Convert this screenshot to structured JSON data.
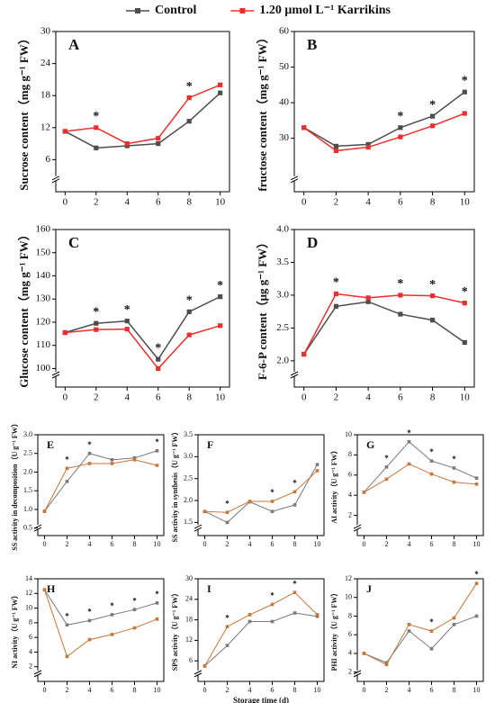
{
  "chart_data": [
    {
      "type": "line",
      "label": "A",
      "ylabel": "Sucrose content（mg g⁻¹ FW）",
      "x": [
        0,
        2,
        4,
        6,
        8,
        10
      ],
      "xlim": [
        -0.6,
        10.6
      ],
      "xticks": [
        0,
        2,
        4,
        6,
        8,
        10
      ],
      "ylim": [
        0,
        30
      ],
      "yticks": [
        6,
        12,
        18,
        24,
        30
      ],
      "series": [
        {
          "name": "Control",
          "color": "#4d4d4d",
          "values": [
            11.3,
            8.2,
            8.6,
            9.0,
            13.2,
            18.5
          ]
        },
        {
          "name": "1.20 μmol L⁻¹ Karrikins",
          "color": "#e8302c",
          "values": [
            11.3,
            12.0,
            9.0,
            10.0,
            17.6,
            20.0
          ]
        }
      ],
      "annotations": [
        {
          "x": 2,
          "text": "*"
        },
        {
          "x": 8,
          "text": "*"
        }
      ]
    },
    {
      "type": "line",
      "label": "B",
      "ylabel": "fructose content（mg g⁻¹ FW）",
      "x": [
        0,
        2,
        4,
        6,
        8,
        10
      ],
      "xlim": [
        -0.6,
        10.6
      ],
      "xticks": [
        0,
        2,
        4,
        6,
        8,
        10
      ],
      "ylim": [
        15,
        60
      ],
      "yticks": [
        30,
        40,
        50,
        60
      ],
      "series": [
        {
          "name": "Control",
          "color": "#4d4d4d",
          "values": [
            33,
            27.8,
            28.3,
            33,
            36.2,
            43
          ]
        },
        {
          "name": "1.20 μmol L⁻¹ Karrikins",
          "color": "#e8302c",
          "values": [
            33,
            26.5,
            27.5,
            30.4,
            33.5,
            37
          ]
        }
      ],
      "annotations": [
        {
          "x": 6,
          "text": "*"
        },
        {
          "x": 8,
          "text": "*"
        },
        {
          "x": 10,
          "text": "*"
        }
      ]
    },
    {
      "type": "line",
      "label": "C",
      "ylabel": "Glucose content（mg g⁻¹ FW）",
      "x": [
        0,
        2,
        4,
        6,
        8,
        10
      ],
      "xlim": [
        -0.6,
        10.6
      ],
      "xticks": [
        0,
        2,
        4,
        6,
        8,
        10
      ],
      "ylim": [
        92,
        160
      ],
      "yticks": [
        100,
        110,
        120,
        130,
        140,
        150,
        160
      ],
      "series": [
        {
          "name": "Control",
          "color": "#4d4d4d",
          "values": [
            115.5,
            119.5,
            120.5,
            104,
            124.5,
            131
          ]
        },
        {
          "name": "1.20 μmol L⁻¹ Karrikins",
          "color": "#e8302c",
          "values": [
            115.5,
            116.8,
            117,
            100,
            114.5,
            118.5
          ]
        }
      ],
      "annotations": [
        {
          "x": 2,
          "text": "*"
        },
        {
          "x": 4,
          "text": "*"
        },
        {
          "x": 6,
          "text": "*"
        },
        {
          "x": 8,
          "text": "*"
        },
        {
          "x": 10,
          "text": "*"
        }
      ]
    },
    {
      "type": "line",
      "label": "D",
      "ylabel": "F-6-P content（μg g⁻¹ FW）",
      "x": [
        0,
        2,
        4,
        6,
        8,
        10
      ],
      "xlim": [
        -0.6,
        10.6
      ],
      "xticks": [
        0,
        2,
        4,
        6,
        8,
        10
      ],
      "ylim": [
        1.6,
        4.0
      ],
      "yticks": [
        {
          "value": 2,
          "label": "2.0"
        },
        2.5,
        {
          "value": 3,
          "label": "3.0"
        },
        3.5,
        {
          "value": 4,
          "label": "4.0"
        }
      ],
      "series": [
        {
          "name": "Control",
          "color": "#4d4d4d",
          "values": [
            2.1,
            2.83,
            2.9,
            2.71,
            2.62,
            2.28
          ]
        },
        {
          "name": "1.20 μmol L⁻¹ Karrikins",
          "color": "#e8302c",
          "values": [
            2.1,
            3.02,
            2.96,
            3.0,
            2.99,
            2.88
          ]
        }
      ],
      "annotations": [
        {
          "x": 2,
          "text": "*"
        },
        {
          "x": 6,
          "text": "*"
        },
        {
          "x": 8,
          "text": "*"
        },
        {
          "x": 10,
          "text": "*"
        }
      ]
    },
    {
      "type": "line",
      "label": "E",
      "ylabel": "SS activity in decomposition（U g⁻¹ FW）",
      "x": [
        0,
        2,
        4,
        6,
        8,
        10
      ],
      "xlim": [
        -0.6,
        10.6
      ],
      "xticks": [
        0,
        2,
        4,
        6,
        8,
        10
      ],
      "ylim": [
        0.3,
        3.0
      ],
      "yticks": [
        0.5,
        {
          "value": 1,
          "label": "1.0"
        },
        1.5,
        {
          "value": 2,
          "label": "2.0"
        },
        2.5,
        {
          "value": 3,
          "label": "3.0"
        }
      ],
      "series": [
        {
          "name": "Control",
          "color": "#7a7a7a",
          "values": [
            0.95,
            1.75,
            2.5,
            2.33,
            2.38,
            2.57
          ]
        },
        {
          "name": "1.20 μmol L⁻¹ Karrikins",
          "color": "#c8763a",
          "values": [
            0.95,
            2.1,
            2.23,
            2.23,
            2.33,
            2.18
          ]
        }
      ],
      "annotations": [
        {
          "x": 2,
          "text": "*"
        },
        {
          "x": 4,
          "text": "*"
        },
        {
          "x": 10,
          "text": "*"
        }
      ]
    },
    {
      "type": "line",
      "label": "F",
      "ylabel": "SS activity in synthesis（U g⁻¹ FW）",
      "x": [
        0,
        2,
        4,
        6,
        8,
        10
      ],
      "xlim": [
        -0.6,
        10.6
      ],
      "xticks": [
        0,
        2,
        4,
        6,
        8,
        10
      ],
      "ylim": [
        1.2,
        3.5
      ],
      "yticks": [
        1.5,
        {
          "value": 2,
          "label": "2.0"
        },
        2.5,
        {
          "value": 3,
          "label": "3.0"
        },
        3.5
      ],
      "series": [
        {
          "name": "Control",
          "color": "#7a7a7a",
          "values": [
            1.75,
            1.5,
            1.97,
            1.75,
            1.9,
            2.82
          ]
        },
        {
          "name": "1.20 μmol L⁻¹ Karrikins",
          "color": "#c8763a",
          "values": [
            1.75,
            1.73,
            1.98,
            1.98,
            2.2,
            2.68
          ]
        }
      ],
      "annotations": [
        {
          "x": 2,
          "text": "*"
        },
        {
          "x": 6,
          "text": "*"
        },
        {
          "x": 8,
          "text": "*"
        }
      ]
    },
    {
      "type": "line",
      "label": "G",
      "ylabel": "AI activity（U g⁻¹ FW）",
      "x": [
        0,
        2,
        4,
        6,
        8,
        10
      ],
      "xlim": [
        -0.6,
        10.6
      ],
      "xticks": [
        0,
        2,
        4,
        6,
        8,
        10
      ],
      "ylim": [
        0,
        10
      ],
      "yticks": [
        2,
        4,
        6,
        8,
        10
      ],
      "series": [
        {
          "name": "Control",
          "color": "#7a7a7a",
          "values": [
            4.3,
            6.8,
            9.3,
            7.4,
            6.7,
            5.7
          ]
        },
        {
          "name": "1.20 μmol L⁻¹ Karrikins",
          "color": "#c8763a",
          "values": [
            4.3,
            5.6,
            7.1,
            6.1,
            5.3,
            5.1
          ]
        }
      ],
      "annotations": [
        {
          "x": 2,
          "text": "*"
        },
        {
          "x": 4,
          "text": "*"
        },
        {
          "x": 6,
          "text": "*"
        },
        {
          "x": 8,
          "text": "*"
        }
      ]
    },
    {
      "type": "line",
      "label": "H",
      "ylabel": "NI activity（U g⁻¹ FW）",
      "x": [
        0,
        2,
        4,
        6,
        8,
        10
      ],
      "xlim": [
        -0.6,
        10.6
      ],
      "xticks": [
        0,
        2,
        4,
        6,
        8,
        10
      ],
      "ylim": [
        0,
        14
      ],
      "yticks": [
        2,
        4,
        6,
        8,
        10,
        12,
        14
      ],
      "series": [
        {
          "name": "Control",
          "color": "#7a7a7a",
          "values": [
            12.5,
            7.7,
            8.3,
            9.1,
            9.8,
            10.7
          ]
        },
        {
          "name": "1.20 μmol L⁻¹ Karrikins",
          "color": "#c8763a",
          "values": [
            12.5,
            3.4,
            5.7,
            6.4,
            7.3,
            8.5
          ]
        }
      ],
      "annotations": [
        {
          "x": 2,
          "text": "*"
        },
        {
          "x": 4,
          "text": "*"
        },
        {
          "x": 6,
          "text": "*"
        },
        {
          "x": 8,
          "text": "*"
        },
        {
          "x": 10,
          "text": "*"
        }
      ]
    },
    {
      "type": "line",
      "label": "I",
      "ylabel": "SPS activity（U g⁻¹ FW）",
      "xlabel": "Storage time (d)",
      "x": [
        0,
        2,
        4,
        6,
        8,
        10
      ],
      "xlim": [
        -0.6,
        10.6
      ],
      "xticks": [
        0,
        2,
        4,
        6,
        8,
        10
      ],
      "ylim": [
        0,
        30
      ],
      "yticks": [
        6,
        12,
        18,
        24,
        30
      ],
      "series": [
        {
          "name": "Control",
          "color": "#7a7a7a",
          "values": [
            4.5,
            10.5,
            17.5,
            17.5,
            20,
            19
          ]
        },
        {
          "name": "1.20 μmol L⁻¹ Karrikins",
          "color": "#c8763a",
          "values": [
            4.5,
            16,
            19.5,
            22.5,
            26,
            19.5
          ]
        }
      ],
      "annotations": [
        {
          "x": 2,
          "text": "*"
        },
        {
          "x": 6,
          "text": "*"
        },
        {
          "x": 8,
          "text": "*"
        }
      ]
    },
    {
      "type": "line",
      "label": "J",
      "ylabel": "PHI activity（U g⁻¹ FW）",
      "x": [
        0,
        2,
        4,
        6,
        8,
        10
      ],
      "xlim": [
        -0.6,
        10.6
      ],
      "xticks": [
        0,
        2,
        4,
        6,
        8,
        10
      ],
      "ylim": [
        1,
        12
      ],
      "yticks": [
        2,
        4,
        6,
        8,
        10,
        12
      ],
      "series": [
        {
          "name": "Control",
          "color": "#7a7a7a",
          "values": [
            4,
            3,
            6.4,
            4.5,
            7.1,
            8
          ]
        },
        {
          "name": "1.20 μmol L⁻¹ Karrikins",
          "color": "#c8763a",
          "values": [
            4,
            2.8,
            7.1,
            6.4,
            7.8,
            11.5
          ]
        }
      ],
      "annotations": [
        {
          "x": 6,
          "text": "*"
        },
        {
          "x": 10,
          "text": "*"
        }
      ]
    }
  ]
}
